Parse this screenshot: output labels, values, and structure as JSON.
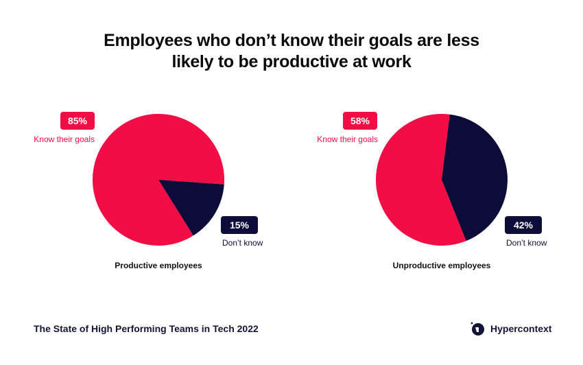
{
  "title": {
    "line1": "Employees who don’t know their goals are less",
    "line2": "likely to be productive at work"
  },
  "colors": {
    "accent": "#f20d44",
    "dark": "#0c0c38"
  },
  "chart_data": [
    {
      "type": "pie",
      "caption": "Productive employees",
      "slices": [
        {
          "label": "Know their goals",
          "value": 85,
          "value_label": "85%",
          "color": "#f20d44"
        },
        {
          "label": "Don’t know",
          "value": 15,
          "value_label": "15%",
          "color": "#0c0c38"
        }
      ]
    },
    {
      "type": "pie",
      "caption": "Unproductive employees",
      "slices": [
        {
          "label": "Know their goals",
          "value": 58,
          "value_label": "58%",
          "color": "#f20d44"
        },
        {
          "label": "Don’t know",
          "value": 42,
          "value_label": "42%",
          "color": "#0c0c38"
        }
      ]
    }
  ],
  "footer": {
    "source": "The State of High Performing Teams in Tech 2022",
    "brand": "Hypercontext",
    "brand_icon": "hypercontext-logo-icon"
  }
}
